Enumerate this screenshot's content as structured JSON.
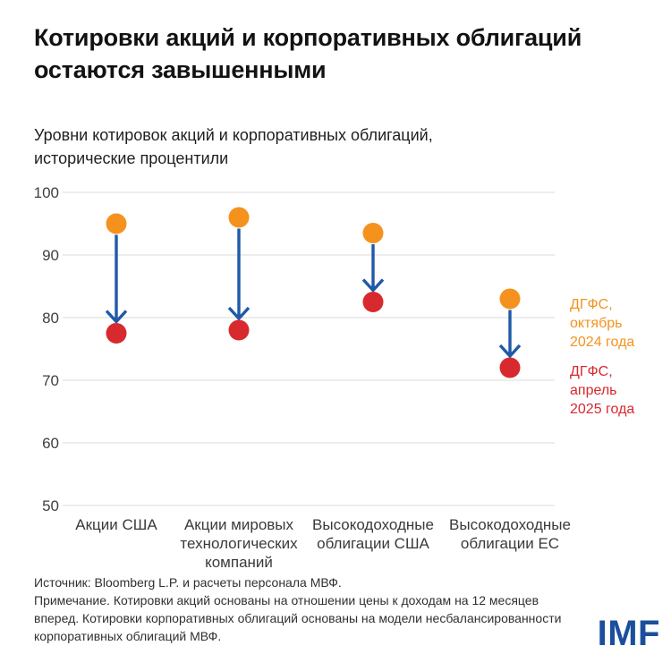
{
  "header": {
    "title": "Котировки акций и корпоративных облигаций\nостаются завышенными",
    "subtitle": "Уровни котировок акций и корпоративных облигаций,\nисторические процентили"
  },
  "chart_data": {
    "type": "scatter",
    "subtype": "dumbbell-arrow",
    "title": "Уровни котировок акций и корпоративных облигаций, исторические процентили",
    "categories": [
      "Акции США",
      "Акции мировых технологических компаний",
      "Высокодоходные облигации США",
      "Высокодоходные облигации ЕС"
    ],
    "series": [
      {
        "name": "ДГФС, октябрь 2024 года",
        "color": "#F5921E",
        "values": [
          95,
          96,
          93.5,
          83
        ]
      },
      {
        "name": "ДГФС, апрель 2025 года",
        "color": "#D8292F",
        "values": [
          77.5,
          78,
          82.5,
          72
        ]
      }
    ],
    "xlabel": "",
    "ylabel": "",
    "ylim": [
      50,
      100
    ],
    "yticks": [
      100,
      90,
      80,
      70,
      60,
      50
    ],
    "grid": true,
    "arrow_color": "#1E5AA8",
    "legend_position": "right"
  },
  "legend": {
    "october_label": "ДГФС,\nоктябрь\n2024 года",
    "april_label": "ДГФС,\nапрель\n2025 года"
  },
  "footer": {
    "source": "Источник: Bloomberg L.P. и расчеты персонала МВФ.",
    "note": "Примечание. Котировки акций основаны на отношении цены к доходам на 12 месяцев вперед. Котировки корпоративных облигаций основаны на модели несбалансированности корпоративных облигаций МВФ.",
    "logo_text": "IMF"
  },
  "colors": {
    "orange": "#F5921E",
    "red": "#D8292F",
    "arrow_blue": "#1E5AA8",
    "imf_blue": "#1B4F9C",
    "gridline": "#DBDBDB",
    "tick_text": "#3f3f3f"
  }
}
